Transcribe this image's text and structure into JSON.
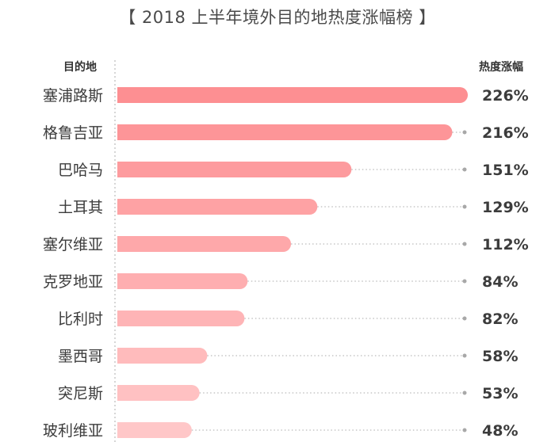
{
  "title": "【 2018 上半年境外目的地热度涨幅榜 】",
  "headers": {
    "left": "目的地",
    "right": "热度涨幅"
  },
  "chart_data": {
    "type": "bar",
    "orientation": "horizontal",
    "categories": [
      "塞浦路斯",
      "格鲁吉亚",
      "巴哈马",
      "土耳其",
      "塞尔维亚",
      "克罗地亚",
      "比利时",
      "墨西哥",
      "突尼斯",
      "玻利维亚"
    ],
    "values": [
      226,
      216,
      151,
      129,
      112,
      84,
      82,
      58,
      53,
      48
    ],
    "value_labels": [
      "226%",
      "216%",
      "151%",
      "129%",
      "112%",
      "84%",
      "82%",
      "58%",
      "53%",
      "48%"
    ],
    "unit": "%",
    "colors": {
      "bar_strong": "#fd8f92",
      "bar_light": "#ffc7c8",
      "dotted_line": "#bbbbbb",
      "axis_line": "#c8c8c8"
    }
  }
}
